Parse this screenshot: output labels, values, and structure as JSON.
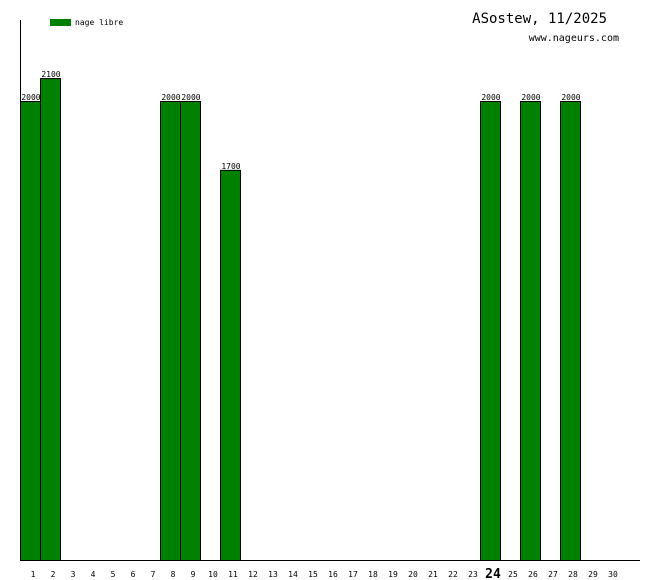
{
  "chart_data": {
    "type": "bar",
    "title": "ASostew, 11/2025",
    "subtitle": "www.nageurs.com",
    "xlabel": "",
    "ylabel": "",
    "legend": {
      "label": "nage libre",
      "color": "#008000",
      "placement": "top-left"
    },
    "categories": [
      "1",
      "2",
      "3",
      "4",
      "5",
      "6",
      "7",
      "8",
      "9",
      "10",
      "11",
      "12",
      "13",
      "14",
      "15",
      "16",
      "17",
      "18",
      "19",
      "20",
      "21",
      "22",
      "23",
      "24",
      "25",
      "26",
      "27",
      "28",
      "29",
      "30"
    ],
    "highlighted_category": "24",
    "series": [
      {
        "name": "nage libre",
        "color": "#008000",
        "values": [
          2000,
          2100,
          0,
          0,
          0,
          0,
          0,
          2000,
          2000,
          0,
          1700,
          0,
          0,
          0,
          0,
          0,
          0,
          0,
          0,
          0,
          0,
          0,
          0,
          2000,
          0,
          2000,
          0,
          2000,
          0,
          0
        ]
      }
    ],
    "ylim": [
      0,
      2353
    ],
    "grid": false
  }
}
